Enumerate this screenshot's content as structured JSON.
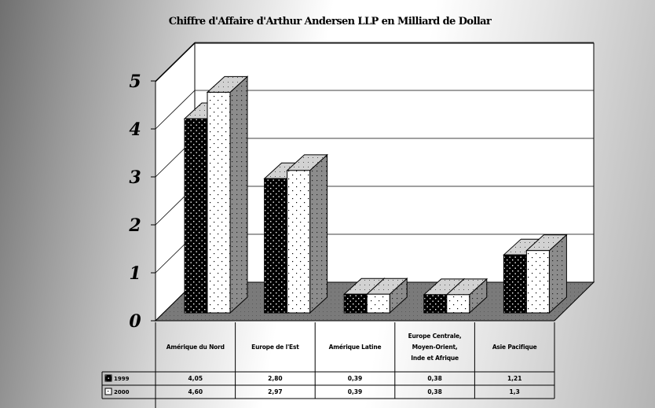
{
  "chart_data": {
    "type": "bar",
    "title": "Chiffre d'Affaire d'Arthur  Andersen LLP en Milliard de Dollar",
    "categories": [
      [
        "Amérique du Nord"
      ],
      [
        "Europe de l'Est"
      ],
      [
        "Amérique Latine"
      ],
      [
        "Europe Centrale,",
        "Moyen-Orient,",
        "Inde et Afrique"
      ],
      [
        "Asie Pacifique"
      ]
    ],
    "series": [
      {
        "name": "1999",
        "values": [
          4.05,
          2.8,
          0.39,
          0.38,
          1.21
        ],
        "labels": [
          "4,05",
          "2,80",
          "0,39",
          "0,38",
          "1,21"
        ],
        "pattern": "dark"
      },
      {
        "name": "2000",
        "values": [
          4.6,
          2.97,
          0.39,
          0.38,
          1.3
        ],
        "labels": [
          "4,60",
          "2,97",
          "0,39",
          "0,38",
          "1,3"
        ],
        "pattern": "light"
      }
    ],
    "yticks": [
      "0",
      "1",
      "2",
      "3",
      "4",
      "5"
    ],
    "ylim": [
      0,
      5
    ],
    "grid": true,
    "legend_placement": "data-table-left",
    "colors": {
      "floor": "#7a7a7a",
      "wall": "#ffffff",
      "dark_bar": "#000000",
      "light_bar": "#ffffff",
      "side": "#8c8c8c",
      "top": "#d2d2d2"
    }
  }
}
